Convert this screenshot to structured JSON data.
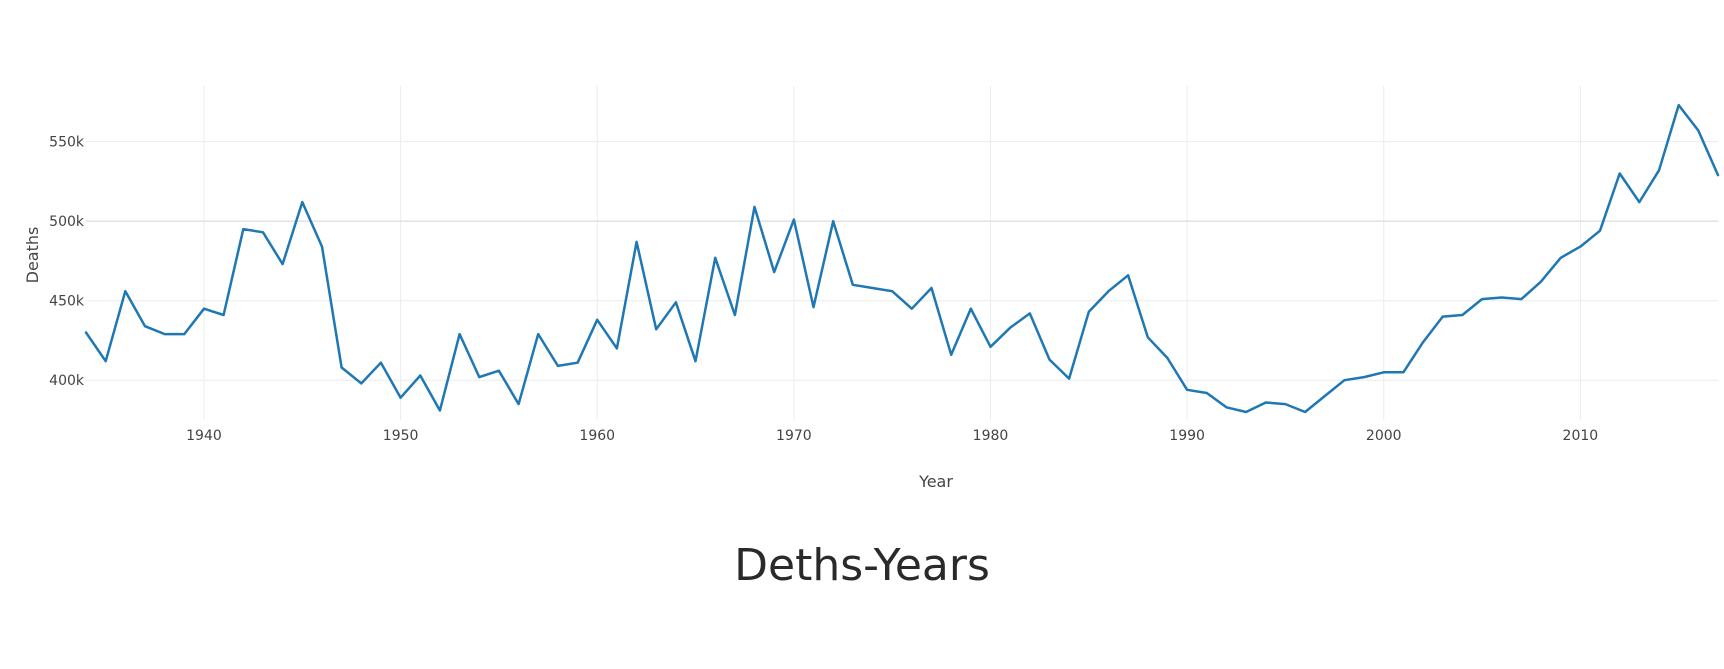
{
  "page_title": "Deths-Years",
  "chart_data": {
    "type": "line",
    "xlabel": "Year",
    "ylabel": "Deaths",
    "xlim": [
      1934,
      2017
    ],
    "ylim": [
      375000,
      585000
    ],
    "x_ticks": [
      1940,
      1950,
      1960,
      1970,
      1980,
      1990,
      2000,
      2010
    ],
    "x_tick_labels": [
      "1940",
      "1950",
      "1960",
      "1970",
      "1980",
      "1990",
      "2000",
      "2010"
    ],
    "y_ticks": [
      400000,
      450000,
      500000,
      550000
    ],
    "y_tick_labels": [
      "400k",
      "450k",
      "500k",
      "550k"
    ],
    "grid": true,
    "line_color": "#1f77b4",
    "x": [
      1934,
      1935,
      1936,
      1937,
      1938,
      1939,
      1940,
      1941,
      1942,
      1943,
      1944,
      1945,
      1946,
      1947,
      1948,
      1949,
      1950,
      1951,
      1952,
      1953,
      1954,
      1955,
      1956,
      1957,
      1958,
      1959,
      1960,
      1961,
      1962,
      1963,
      1964,
      1965,
      1966,
      1967,
      1968,
      1969,
      1970,
      1971,
      1972,
      1973,
      1974,
      1975,
      1976,
      1977,
      1978,
      1979,
      1980,
      1981,
      1982,
      1983,
      1984,
      1985,
      1986,
      1987,
      1988,
      1989,
      1990,
      1991,
      1992,
      1993,
      1994,
      1995,
      1996,
      1997,
      1998,
      1999,
      2000,
      2001,
      2002,
      2003,
      2004,
      2005,
      2006,
      2007,
      2008,
      2009,
      2010,
      2011,
      2012,
      2013,
      2014,
      2015,
      2016,
      2017
    ],
    "y": [
      430000,
      412000,
      456000,
      434000,
      429000,
      429000,
      445000,
      441000,
      495000,
      493000,
      473000,
      512000,
      484000,
      408000,
      398000,
      411000,
      389000,
      403000,
      381000,
      429000,
      402000,
      406000,
      385000,
      429000,
      409000,
      411000,
      438000,
      420000,
      487000,
      432000,
      449000,
      412000,
      477000,
      441000,
      509000,
      468000,
      501000,
      446000,
      500000,
      460000,
      458000,
      456000,
      445000,
      458000,
      416000,
      445000,
      421000,
      433000,
      442000,
      413000,
      401000,
      443000,
      456000,
      466000,
      427000,
      414000,
      394000,
      392000,
      383000,
      380000,
      386000,
      385000,
      380000,
      390000,
      400000,
      402000,
      405000,
      405000,
      424000,
      440000,
      441000,
      451000,
      452000,
      451000,
      462000,
      477000,
      484000,
      494000,
      530000,
      512000,
      532000,
      573000,
      557000,
      529000
    ]
  }
}
